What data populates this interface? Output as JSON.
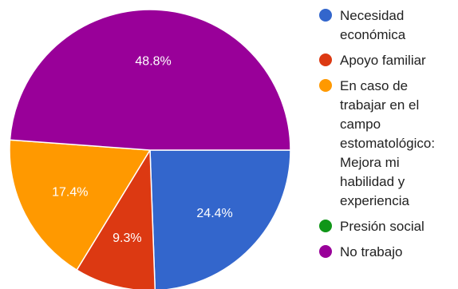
{
  "chart_data": {
    "type": "pie",
    "title": "",
    "slices": [
      {
        "label_lines": [
          "Necesidad",
          "económica"
        ],
        "value": 24.4,
        "value_label": "24.4%",
        "color": "#3366cc"
      },
      {
        "label_lines": [
          "Apoyo familiar"
        ],
        "value": 9.3,
        "value_label": "9.3%",
        "color": "#dc3912"
      },
      {
        "label_lines": [
          "En caso de",
          "trabajar en el",
          "campo",
          "estomatológico:",
          "Mejora mi",
          "habilidad y",
          "experiencia"
        ],
        "value": 17.4,
        "value_label": "17.4%",
        "color": "#ff9900"
      },
      {
        "label_lines": [
          "Presión social"
        ],
        "value": 0,
        "value_label": "",
        "color": "#109618"
      },
      {
        "label_lines": [
          "No trabajo"
        ],
        "value": 48.8,
        "value_label": "48.8%",
        "color": "#990099"
      }
    ],
    "legend_position": "right"
  }
}
